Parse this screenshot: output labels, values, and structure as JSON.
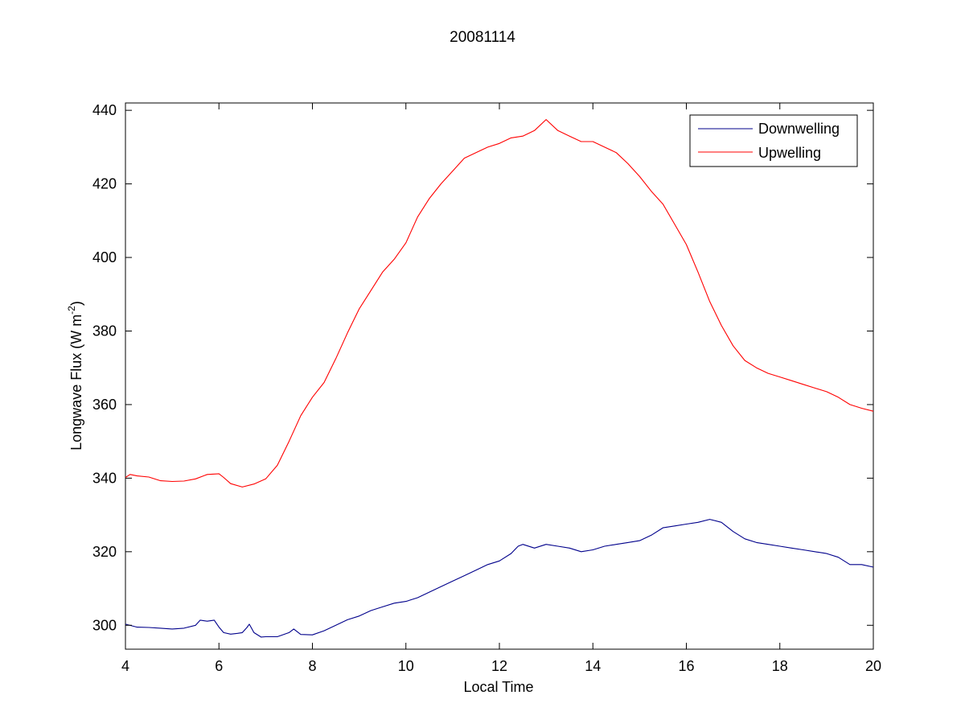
{
  "chart_data": {
    "type": "line",
    "title": "20081114",
    "xlabel": "Local Time",
    "ylabel": "Longwave Flux (W m",
    "ylabel_superscript": "-2",
    "ylabel_suffix": ")",
    "xlim": [
      4,
      20
    ],
    "ylim": [
      293.5,
      442
    ],
    "xticks": [
      4,
      6,
      8,
      10,
      12,
      14,
      16,
      18,
      20
    ],
    "yticks": [
      300,
      320,
      340,
      360,
      380,
      400,
      420,
      440
    ],
    "grid": false,
    "legend_position": "top-right",
    "series": [
      {
        "name": "Downwelling",
        "color": "#00008b",
        "x": [
          4.0,
          4.25,
          4.5,
          4.75,
          5.0,
          5.25,
          5.5,
          5.6,
          5.75,
          5.9,
          6.0,
          6.1,
          6.25,
          6.4,
          6.5,
          6.6,
          6.65,
          6.75,
          6.9,
          7.0,
          7.25,
          7.5,
          7.6,
          7.75,
          8.0,
          8.25,
          8.5,
          8.75,
          9.0,
          9.25,
          9.5,
          9.75,
          10.0,
          10.25,
          10.5,
          10.75,
          11.0,
          11.25,
          11.5,
          11.75,
          12.0,
          12.25,
          12.4,
          12.5,
          12.75,
          13.0,
          13.25,
          13.5,
          13.75,
          14.0,
          14.25,
          14.5,
          14.75,
          15.0,
          15.25,
          15.5,
          15.75,
          16.0,
          16.25,
          16.5,
          16.75,
          17.0,
          17.25,
          17.5,
          17.75,
          18.0,
          18.25,
          18.5,
          18.75,
          19.0,
          19.25,
          19.5,
          19.75,
          20.0
        ],
        "y": [
          300.3,
          299.5,
          299.4,
          299.2,
          299.0,
          299.2,
          300.0,
          301.4,
          301.1,
          301.4,
          299.5,
          298.0,
          297.6,
          297.8,
          298.0,
          299.4,
          300.3,
          298.0,
          296.8,
          296.9,
          296.9,
          298.0,
          299.0,
          297.5,
          297.4,
          298.5,
          300.0,
          301.5,
          302.5,
          304.0,
          305.0,
          306.0,
          306.5,
          307.5,
          309.0,
          310.5,
          312.0,
          313.5,
          315.0,
          316.5,
          317.5,
          319.5,
          321.5,
          322.0,
          321.0,
          322.0,
          321.5,
          321.0,
          320.0,
          320.5,
          321.5,
          322.0,
          322.5,
          323.0,
          324.5,
          326.5,
          327.0,
          327.5,
          328.0,
          328.8,
          328.0,
          325.5,
          323.5,
          322.5,
          322.0,
          321.5,
          321.0,
          320.5,
          320.0,
          319.5,
          318.5,
          316.5,
          316.5,
          315.8
        ]
      },
      {
        "name": "Upwelling",
        "color": "#ff0000",
        "x": [
          4.0,
          4.1,
          4.25,
          4.5,
          4.75,
          5.0,
          5.25,
          5.5,
          5.75,
          6.0,
          6.1,
          6.25,
          6.5,
          6.75,
          7.0,
          7.25,
          7.5,
          7.75,
          8.0,
          8.25,
          8.5,
          8.75,
          9.0,
          9.25,
          9.5,
          9.75,
          10.0,
          10.25,
          10.5,
          10.75,
          11.0,
          11.25,
          11.5,
          11.75,
          12.0,
          12.25,
          12.5,
          12.75,
          13.0,
          13.25,
          13.5,
          13.75,
          14.0,
          14.25,
          14.5,
          14.75,
          15.0,
          15.25,
          15.5,
          15.75,
          16.0,
          16.25,
          16.5,
          16.75,
          17.0,
          17.25,
          17.5,
          17.75,
          18.0,
          18.25,
          18.5,
          18.75,
          19.0,
          19.25,
          19.5,
          19.75,
          20.0
        ],
        "y": [
          340.2,
          341.0,
          340.6,
          340.3,
          339.3,
          339.1,
          339.2,
          339.8,
          341.0,
          341.2,
          340.2,
          338.5,
          337.6,
          338.4,
          339.8,
          343.5,
          350.0,
          357.0,
          362.0,
          366.0,
          372.5,
          379.5,
          386.0,
          391.0,
          396.0,
          399.5,
          404.0,
          411.0,
          416.0,
          420.0,
          423.5,
          427.0,
          428.5,
          430.0,
          431.0,
          432.5,
          433.0,
          434.5,
          437.5,
          434.5,
          433.0,
          431.5,
          431.5,
          430.0,
          428.5,
          425.5,
          422.0,
          418.0,
          414.5,
          409.0,
          403.5,
          396.0,
          388.0,
          381.5,
          376.0,
          372.0,
          370.0,
          368.5,
          367.5,
          366.5,
          365.5,
          364.5,
          363.5,
          362.0,
          360.0,
          359.0,
          358.2
        ]
      }
    ]
  }
}
